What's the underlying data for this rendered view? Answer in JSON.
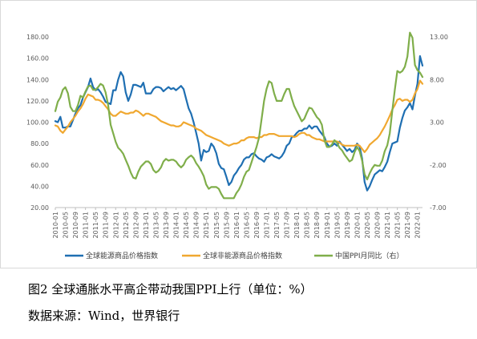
{
  "chart_data": {
    "type": "line",
    "x": [
      "2010-01",
      "2010-02",
      "2010-03",
      "2010-04",
      "2010-05",
      "2010-06",
      "2010-07",
      "2010-08",
      "2010-09",
      "2010-10",
      "2010-11",
      "2010-12",
      "2011-01",
      "2011-02",
      "2011-03",
      "2011-04",
      "2011-05",
      "2011-06",
      "2011-07",
      "2011-08",
      "2011-09",
      "2011-10",
      "2011-11",
      "2011-12",
      "2012-01",
      "2012-02",
      "2012-03",
      "2012-04",
      "2012-05",
      "2012-06",
      "2012-07",
      "2012-08",
      "2012-09",
      "2012-10",
      "2012-11",
      "2012-12",
      "2013-01",
      "2013-02",
      "2013-03",
      "2013-04",
      "2013-05",
      "2013-06",
      "2013-07",
      "2013-08",
      "2013-09",
      "2013-10",
      "2013-11",
      "2013-12",
      "2014-01",
      "2014-02",
      "2014-03",
      "2014-04",
      "2014-05",
      "2014-06",
      "2014-07",
      "2014-08",
      "2014-09",
      "2014-10",
      "2014-11",
      "2014-12",
      "2015-01",
      "2015-02",
      "2015-03",
      "2015-04",
      "2015-05",
      "2015-06",
      "2015-07",
      "2015-08",
      "2015-09",
      "2015-10",
      "2015-11",
      "2015-12",
      "2016-01",
      "2016-02",
      "2016-03",
      "2016-04",
      "2016-05",
      "2016-06",
      "2016-07",
      "2016-08",
      "2016-09",
      "2016-10",
      "2016-11",
      "2016-12",
      "2017-01",
      "2017-02",
      "2017-03",
      "2017-04",
      "2017-05",
      "2017-06",
      "2017-07",
      "2017-08",
      "2017-09",
      "2017-10",
      "2017-11",
      "2017-12",
      "2018-01",
      "2018-02",
      "2018-03",
      "2018-04",
      "2018-05",
      "2018-06",
      "2018-07",
      "2018-08",
      "2018-09",
      "2018-10",
      "2018-11",
      "2018-12",
      "2019-01",
      "2019-02",
      "2019-03",
      "2019-04",
      "2019-05",
      "2019-06",
      "2019-07",
      "2019-08",
      "2019-09",
      "2019-10",
      "2019-11",
      "2019-12",
      "2020-01",
      "2020-02",
      "2020-03",
      "2020-04",
      "2020-05",
      "2020-06",
      "2020-07",
      "2020-08",
      "2020-09",
      "2020-10",
      "2020-11",
      "2020-12",
      "2021-01",
      "2021-02",
      "2021-03",
      "2021-04",
      "2021-05",
      "2021-06",
      "2021-07",
      "2021-08",
      "2021-09",
      "2021-10",
      "2021-11",
      "2021-12",
      "2022-01",
      "2022-02",
      "2022-03"
    ],
    "x_tick_labels": [
      "2010-01",
      "2010-05",
      "2010-09",
      "2011-01",
      "2011-05",
      "2011-09",
      "2012-01",
      "2012-05",
      "2012-09",
      "2013-01",
      "2013-05",
      "2013-09",
      "2014-01",
      "2014-05",
      "2014-09",
      "2015-01",
      "2015-05",
      "2015-09",
      "2016-01",
      "2016-05",
      "2016-09",
      "2017-01",
      "2017-05",
      "2017-09",
      "2018-01",
      "2018-05",
      "2018-09",
      "2019-01",
      "2019-05",
      "2019-09",
      "2020-01",
      "2020-05",
      "2020-09",
      "2021-01",
      "2021-05",
      "2021-09",
      "2022-01"
    ],
    "y_left_ticks": [
      "20.00",
      "40.00",
      "60.00",
      "80.00",
      "100.00",
      "120.00",
      "140.00",
      "160.00",
      "180.00"
    ],
    "y_right_ticks": [
      "-7.00",
      "-2.00",
      "3.00",
      "8.00",
      "13.00"
    ],
    "ylim_left": [
      20,
      180
    ],
    "ylim_right": [
      -7,
      13
    ],
    "grid": false,
    "legend_position": "bottom",
    "series": [
      {
        "name": "全球能源商品价格指数",
        "axis": "left",
        "color": "#1f6fb2",
        "values": [
          101,
          100,
          105,
          95,
          95,
          96,
          96,
          102,
          108,
          113,
          116,
          123,
          128,
          133,
          141,
          133,
          130,
          131,
          128,
          124,
          119,
          118,
          117,
          130,
          130,
          140,
          147,
          143,
          128,
          120,
          126,
          135,
          135,
          134,
          133,
          137,
          127,
          127,
          127,
          131,
          133,
          133,
          132,
          129,
          131,
          133,
          131,
          132,
          130,
          132,
          134,
          131,
          122,
          113,
          108,
          100,
          90,
          80,
          64,
          74,
          72,
          73,
          80,
          77,
          71,
          61,
          57,
          56,
          49,
          41,
          44,
          50,
          53,
          57,
          60,
          65,
          67,
          67,
          70,
          71,
          68,
          66,
          65,
          63,
          67,
          68,
          70,
          68,
          67,
          66,
          68,
          72,
          78,
          80,
          86,
          87,
          90,
          92,
          92,
          94,
          94,
          97,
          94,
          96,
          96,
          92,
          89,
          86,
          80,
          77,
          78,
          80,
          78,
          82,
          79,
          76,
          73,
          75,
          72,
          74,
          80,
          77,
          66,
          44,
          36,
          40,
          46,
          51,
          53,
          55,
          54,
          58,
          63,
          72,
          80,
          81,
          82,
          95,
          104,
          111,
          114,
          118,
          112,
          125,
          136,
          162,
          153
        ]
      },
      {
        "name": "全球非能源商品价格指数",
        "axis": "left",
        "color": "#f0a830",
        "values": [
          97,
          96,
          92,
          90,
          93,
          96,
          100,
          103,
          106,
          110,
          113,
          117,
          122,
          126,
          125,
          124,
          121,
          121,
          120,
          118,
          115,
          112,
          108,
          106,
          106,
          108,
          110,
          109,
          108,
          108,
          109,
          109,
          111,
          110,
          108,
          106,
          108,
          108,
          107,
          106,
          105,
          103,
          101,
          100,
          99,
          98,
          97,
          97,
          96,
          96,
          97,
          100,
          99,
          98,
          97,
          96,
          94,
          93,
          92,
          90,
          88,
          87,
          86,
          85,
          84,
          83,
          82,
          80,
          79,
          78,
          79,
          80,
          80,
          81,
          83,
          83,
          85,
          86,
          86,
          86,
          85,
          86,
          86,
          88,
          88,
          89,
          89,
          89,
          88,
          87,
          87,
          87,
          87,
          87,
          87,
          86,
          87,
          89,
          90,
          90,
          88,
          88,
          86,
          85,
          84,
          84,
          83,
          82,
          82,
          82,
          82,
          82,
          82,
          81,
          79,
          78,
          78,
          78,
          78,
          78,
          79,
          78,
          75,
          72,
          75,
          79,
          81,
          83,
          85,
          88,
          92,
          96,
          101,
          106,
          112,
          116,
          121,
          122,
          120,
          121,
          121,
          119,
          121,
          127,
          131,
          139,
          136
        ]
      },
      {
        "name": "中国PPI月同比（右）",
        "axis": "right",
        "color": "#7fae4a",
        "values": [
          4.3,
          5.4,
          5.9,
          6.8,
          7.1,
          6.4,
          4.8,
          4.3,
          4.3,
          5.0,
          6.1,
          5.9,
          6.6,
          7.2,
          7.3,
          6.8,
          6.8,
          7.1,
          7.5,
          7.3,
          6.5,
          5.0,
          2.7,
          1.7,
          0.7,
          0.0,
          -0.3,
          -0.7,
          -1.4,
          -2.1,
          -2.9,
          -3.5,
          -3.6,
          -2.8,
          -2.2,
          -1.9,
          -1.6,
          -1.6,
          -1.9,
          -2.6,
          -2.9,
          -2.7,
          -2.3,
          -1.6,
          -1.3,
          -1.5,
          -1.4,
          -1.4,
          -1.6,
          -2.0,
          -2.3,
          -2.0,
          -1.4,
          -1.1,
          -0.9,
          -1.2,
          -1.8,
          -2.2,
          -2.7,
          -3.3,
          -4.3,
          -4.8,
          -4.6,
          -4.6,
          -4.6,
          -4.8,
          -5.4,
          -5.9,
          -5.9,
          -5.9,
          -5.9,
          -5.9,
          -5.3,
          -4.9,
          -4.3,
          -3.4,
          -2.8,
          -2.6,
          -1.7,
          -0.8,
          0.1,
          1.2,
          3.3,
          5.5,
          6.9,
          7.8,
          7.6,
          6.4,
          5.5,
          5.5,
          5.5,
          6.3,
          6.9,
          6.9,
          5.8,
          4.9,
          4.3,
          3.7,
          3.1,
          3.4,
          4.1,
          4.7,
          4.6,
          4.1,
          3.6,
          3.3,
          2.7,
          0.9,
          0.1,
          0.1,
          0.4,
          0.9,
          0.6,
          0.0,
          -0.3,
          -0.8,
          -1.2,
          -1.6,
          -1.4,
          -0.5,
          0.1,
          -0.4,
          -1.5,
          -3.1,
          -3.7,
          -3.0,
          -2.4,
          -2.0,
          -2.1,
          -2.1,
          -1.5,
          -0.4,
          0.3,
          1.7,
          4.4,
          6.8,
          9.0,
          8.8,
          9.0,
          9.5,
          10.7,
          13.5,
          12.9,
          9.7,
          9.1,
          8.8,
          8.3
        ]
      }
    ]
  },
  "figure": {
    "caption": "图2 全球通胀水平高企带动我国PPI上行（单位：%）",
    "source": "数据来源：Wind，世界银行"
  }
}
